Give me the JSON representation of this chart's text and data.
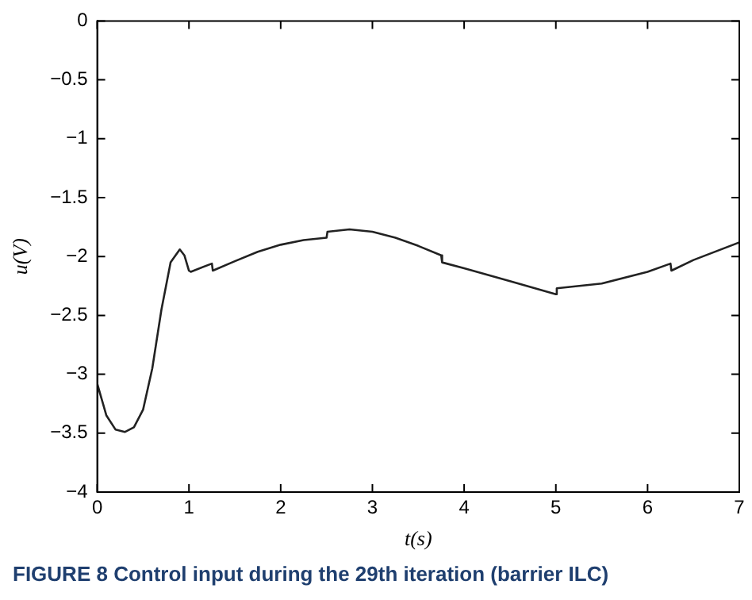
{
  "chart_data": {
    "type": "line",
    "xlabel": "t(s)",
    "ylabel": "u(V)",
    "xlim": [
      0,
      7
    ],
    "ylim": [
      -4,
      0
    ],
    "xticks": [
      0,
      1,
      2,
      3,
      4,
      5,
      6,
      7
    ],
    "yticks": [
      -4,
      -3.5,
      -3,
      -2.5,
      -2,
      -1.5,
      -1,
      -0.5,
      0
    ],
    "grid": false,
    "legend": false,
    "marker": "none",
    "line_style": "solid",
    "annotations": [
      "FIGURE 8 Control input during the 29th iteration (barrier ILC)"
    ],
    "series": [
      {
        "color": "#222222",
        "x": [
          0,
          0.1,
          0.2,
          0.3,
          0.4,
          0.5,
          0.6,
          0.7,
          0.8,
          0.9,
          0.95,
          1.0,
          1.02,
          1.25,
          1.26,
          1.5,
          1.75,
          2.0,
          2.25,
          2.5,
          2.51,
          2.75,
          3.0,
          3.25,
          3.5,
          3.75,
          3.76,
          4.0,
          4.5,
          5.0,
          5.01,
          5.5,
          6.0,
          6.25,
          6.26,
          6.5,
          7
        ],
        "values": [
          -3.08,
          -3.35,
          -3.47,
          -3.49,
          -3.45,
          -3.3,
          -2.95,
          -2.45,
          -2.05,
          -1.94,
          -1.99,
          -2.12,
          -2.13,
          -2.06,
          -2.12,
          -2.04,
          -1.96,
          -1.9,
          -1.86,
          -1.84,
          -1.79,
          -1.77,
          -1.79,
          -1.84,
          -1.91,
          -1.99,
          -2.05,
          -2.1,
          -2.21,
          -2.32,
          -2.27,
          -2.23,
          -2.13,
          -2.06,
          -2.12,
          -2.03,
          -1.88
        ]
      }
    ]
  }
}
